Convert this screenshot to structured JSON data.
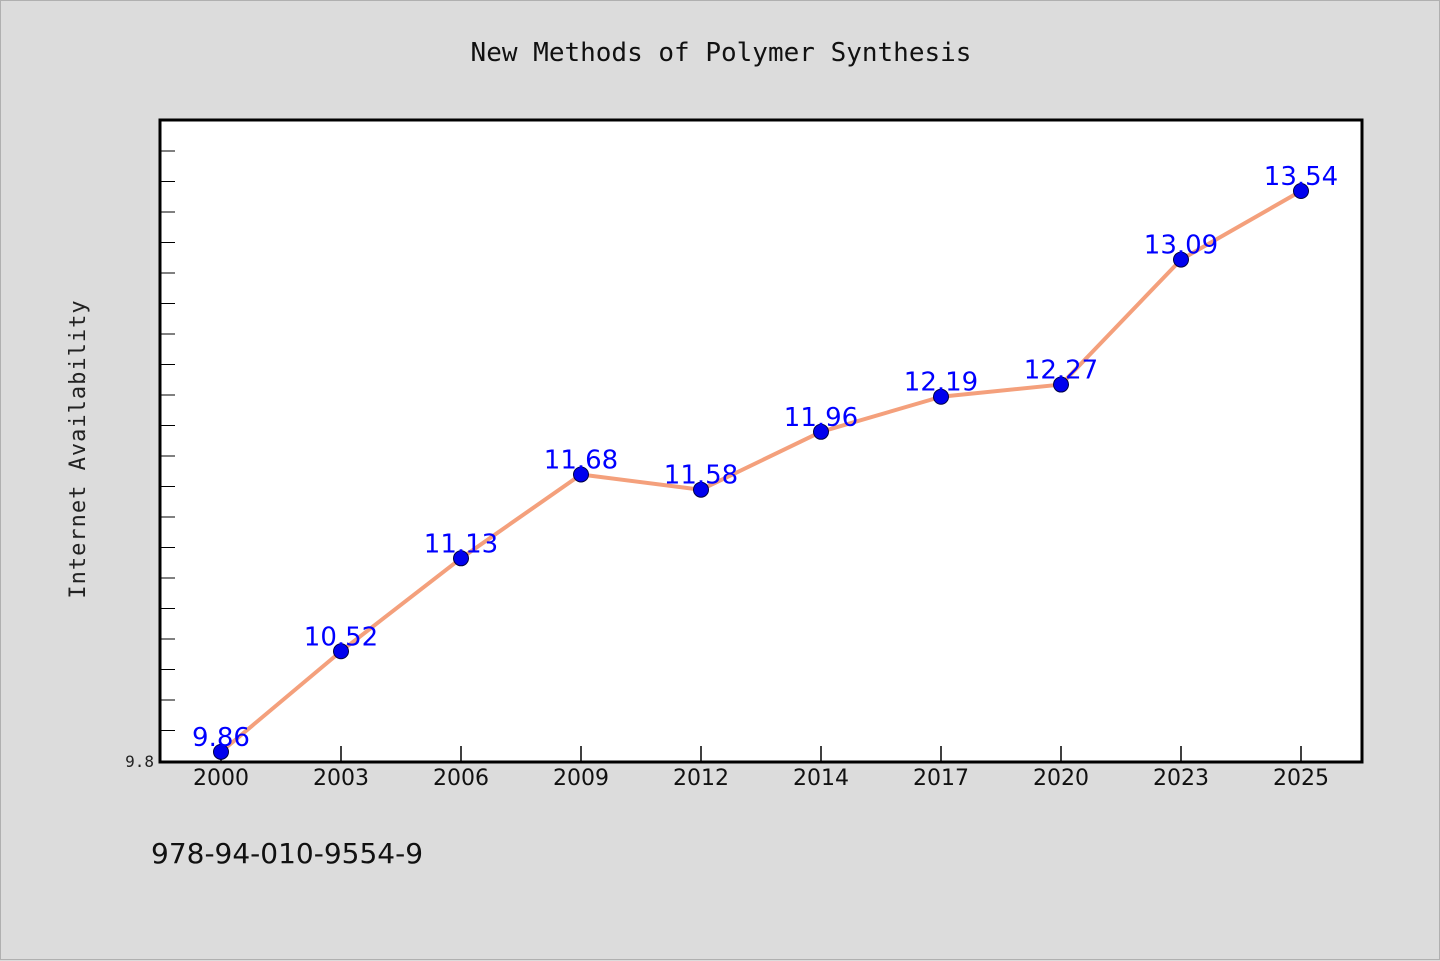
{
  "isbn": "978-94-010-9554-9",
  "colors": {
    "background": "#dcdcdc",
    "plot_background": "#ffffff",
    "line": "#f4a07c",
    "marker": "#0000ee",
    "data_label": "#0000ff"
  },
  "chart_data": {
    "type": "line",
    "title": "New Methods of Polymer Synthesis",
    "xlabel": "",
    "ylabel": "Internet Availability",
    "categories": [
      "2000",
      "2003",
      "2006",
      "2009",
      "2012",
      "2014",
      "2017",
      "2020",
      "2023",
      "2025"
    ],
    "series": [
      {
        "values": [
          9.86,
          10.52,
          11.13,
          11.68,
          11.58,
          11.96,
          12.19,
          12.27,
          13.09,
          13.54
        ]
      }
    ],
    "data_labels": [
      "9.86",
      "10.52",
      "11.13",
      "11.68",
      "11.58",
      "11.96",
      "12.19",
      "12.27",
      "13.09",
      "13.54"
    ],
    "ylim": [
      9.8,
      14.0
    ],
    "yticks": [
      "9.8"
    ],
    "grid": false,
    "legend": "none"
  }
}
